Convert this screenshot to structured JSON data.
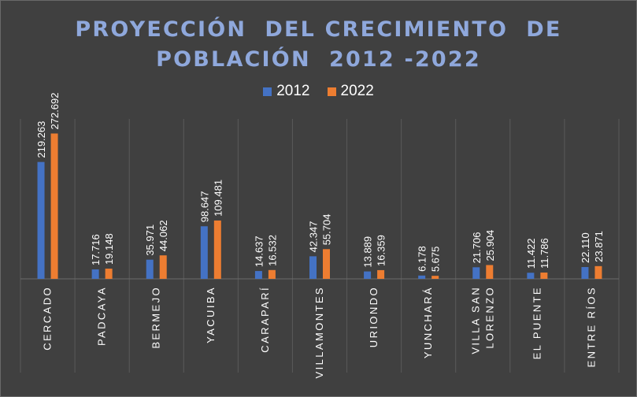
{
  "chart_data": {
    "type": "bar",
    "title": "PROYECCIÓN  DEL CRECIMIENTO  DE POBLACIÓN  2012 -2022",
    "title_lines": [
      "PROYECCIÓN  DEL CRECIMIENTO  DE",
      "POBLACIÓN  2012 -2022"
    ],
    "categories": [
      "CERCADO",
      "PADCAYA",
      "BERMEJO",
      "YACUIBA",
      "CARAPARÍ",
      "VILLAMONTES",
      "URIONDO",
      "YUNCHARÁ",
      "VILLA SAN LORENZO",
      "EL PUENTE",
      "ENTRE RÍOS"
    ],
    "series": [
      {
        "name": "2012",
        "color": "#4472c4",
        "values": [
          219263,
          17716,
          35971,
          98647,
          14637,
          42347,
          13889,
          6178,
          21706,
          11422,
          22110
        ],
        "labels": [
          "219.263",
          "17.716",
          "35.971",
          "98.647",
          "14.637",
          "42.347",
          "13.889",
          "6.178",
          "21.706",
          "11.422",
          "22.110"
        ]
      },
      {
        "name": "2022",
        "color": "#ed7d31",
        "values": [
          272692,
          19148,
          44062,
          109481,
          16532,
          55704,
          16359,
          5675,
          25904,
          11786,
          23871
        ],
        "labels": [
          "272.692",
          "19.148",
          "44.062",
          "109.481",
          "16.532",
          "55.704",
          "16.359",
          "5.675",
          "25.904",
          "11.786",
          "23.871"
        ]
      }
    ],
    "ylim": [
      0,
      300000
    ],
    "grid": "vertical category separators",
    "legend_position": "top-center",
    "background": "#404040",
    "title_color": "#8fa8dc"
  }
}
